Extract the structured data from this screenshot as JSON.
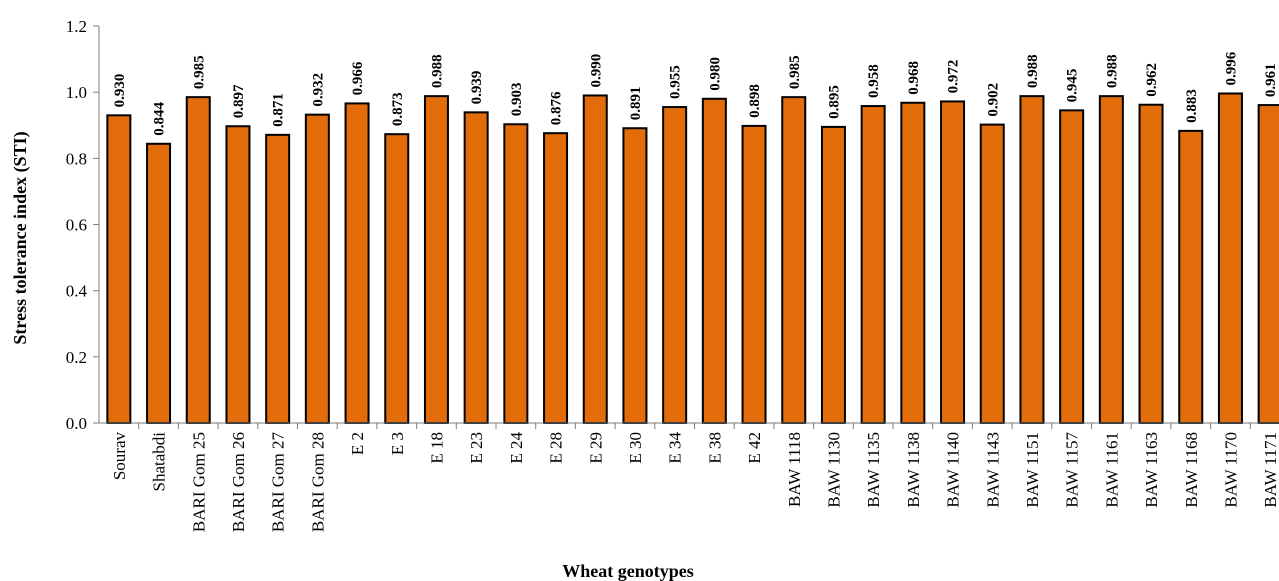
{
  "chart_data": {
    "type": "bar",
    "title": "",
    "xlabel": "Wheat genotypes",
    "ylabel": "Stress  tolerance index (STI)",
    "ylim": [
      0,
      1.2
    ],
    "yticks": [
      "0.0",
      "0.2",
      "0.4",
      "0.6",
      "0.8",
      "1.0",
      "1.2"
    ],
    "grid": false,
    "bar_color": "#E36C0A",
    "categories": [
      "Sourav",
      "Shatabdi",
      "BARI Gom 25",
      "BARI Gom 26",
      "BARI Gom 27",
      "BARI Gom 28",
      "E 2",
      "E 3",
      "E 18",
      "E 23",
      "E 24",
      "E 28",
      "E 29",
      "E 30",
      "E 34",
      "E 38",
      "E 42",
      "BAW 1118",
      "BAW 1130",
      "BAW 1135",
      "BAW 1138",
      "BAW 1140",
      "BAW 1143",
      "BAW 1151",
      "BAW 1157",
      "BAW 1161",
      "BAW 1163",
      "BAW 1168",
      "BAW 1170",
      "BAW 1171"
    ],
    "values": [
      0.93,
      0.844,
      0.985,
      0.897,
      0.871,
      0.932,
      0.966,
      0.873,
      0.988,
      0.939,
      0.903,
      0.876,
      0.99,
      0.891,
      0.955,
      0.98,
      0.898,
      0.985,
      0.895,
      0.958,
      0.968,
      0.972,
      0.902,
      0.988,
      0.945,
      0.988,
      0.962,
      0.883,
      0.996,
      0.961
    ],
    "data_labels": [
      "0.930",
      "0.844",
      "0.985",
      "0.897",
      "0.871",
      "0.932",
      "0.966",
      "0.873",
      "0.988",
      "0.939",
      "0.903",
      "0.876",
      "0.990",
      "0.891",
      "0.955",
      "0.980",
      "0.898",
      "0.985",
      "0.895",
      "0.958",
      "0.968",
      "0.972",
      "0.902",
      "0.988",
      "0.945",
      "0.988",
      "0.962",
      "0.883",
      "0.996",
      "0.961"
    ]
  }
}
